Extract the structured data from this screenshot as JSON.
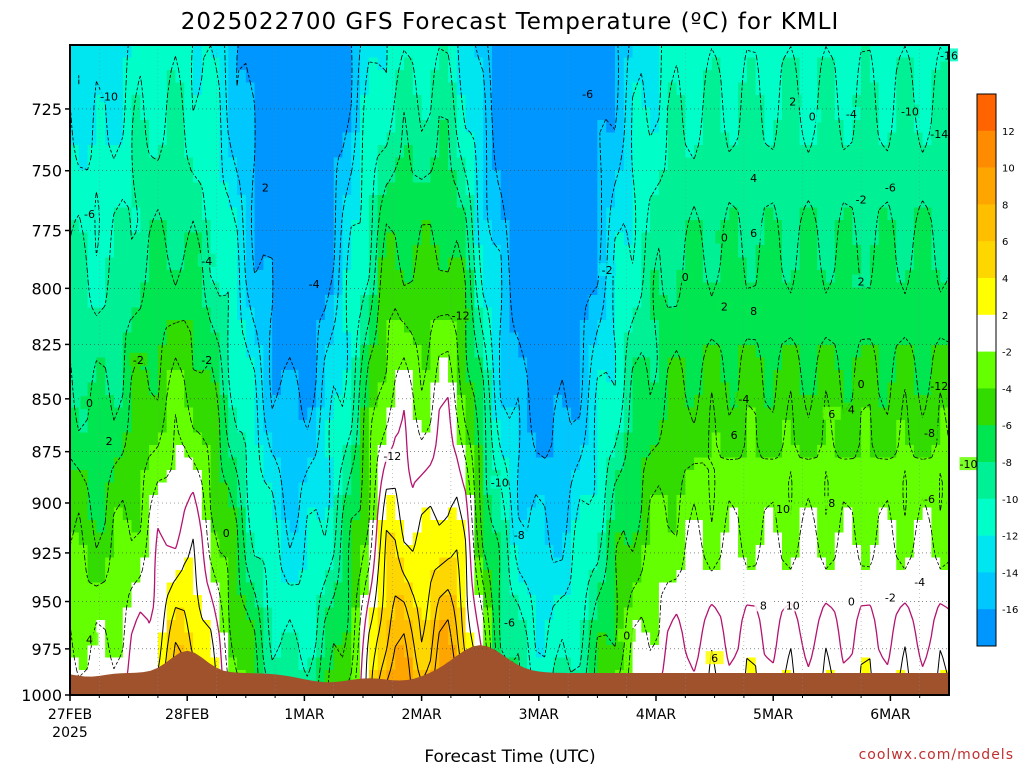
{
  "chart_data": {
    "type": "heatmap",
    "title": "2025022700  GFS Forecast Temperature (ºC) for KMLI",
    "xlabel": "Forecast Time (UTC)",
    "ylabel": "",
    "x_ticks": [
      "27FEB",
      "28FEB",
      "1MAR",
      "2MAR",
      "3MAR",
      "4MAR",
      "5MAR",
      "6MAR"
    ],
    "x_tick_year": "2025",
    "x_range_hours": [
      0,
      180
    ],
    "y_ticks": [
      725,
      750,
      775,
      800,
      825,
      850,
      875,
      900,
      925,
      950,
      975,
      1000
    ],
    "y_range_hpa": [
      1000,
      700
    ],
    "y_scale": "reversed-pressure",
    "grid": true,
    "colorbar": {
      "placement": "right",
      "labels": [
        12,
        10,
        8,
        6,
        4,
        2,
        -2,
        -4,
        -6,
        -8,
        -10,
        -12,
        -14,
        -16
      ],
      "bands": [
        {
          "from": 12,
          "to": 14,
          "color": "#ff6400"
        },
        {
          "from": 10,
          "to": 12,
          "color": "#ff8c00"
        },
        {
          "from": 8,
          "to": 10,
          "color": "#ffa500"
        },
        {
          "from": 6,
          "to": 8,
          "color": "#ffbf00"
        },
        {
          "from": 4,
          "to": 6,
          "color": "#ffd700"
        },
        {
          "from": 2,
          "to": 4,
          "color": "#ffff00"
        },
        {
          "from": -2,
          "to": 2,
          "color": "#ffffff"
        },
        {
          "from": -4,
          "to": -2,
          "color": "#64ff00"
        },
        {
          "from": -6,
          "to": -4,
          "color": "#32dc00"
        },
        {
          "from": -8,
          "to": -6,
          "color": "#00e650"
        },
        {
          "from": -10,
          "to": -8,
          "color": "#00f096"
        },
        {
          "from": -12,
          "to": -10,
          "color": "#00ffc8"
        },
        {
          "from": -14,
          "to": -12,
          "color": "#00e6f0"
        },
        {
          "from": -16,
          "to": -14,
          "color": "#00c8ff"
        },
        {
          "from": -18,
          "to": -16,
          "color": "#0096ff"
        }
      ]
    },
    "terrain_color": "#a0522d",
    "contour_labels": [
      {
        "t": 4,
        "p": 720,
        "v": "-10"
      },
      {
        "t": 2,
        "p": 768,
        "v": "-6"
      },
      {
        "t": 14,
        "p": 788,
        "v": "-4"
      },
      {
        "t": 7,
        "p": 832,
        "v": "-2"
      },
      {
        "t": 14,
        "p": 832,
        "v": "-2"
      },
      {
        "t": 2,
        "p": 852,
        "v": "0"
      },
      {
        "t": 4,
        "p": 870,
        "v": "2"
      },
      {
        "t": 2,
        "p": 970,
        "v": "4"
      },
      {
        "t": 16,
        "p": 915,
        "v": "0"
      },
      {
        "t": 20,
        "p": 757,
        "v": "2"
      },
      {
        "t": 25,
        "p": 798,
        "v": "-4"
      },
      {
        "t": 33,
        "p": 877,
        "v": "-12"
      },
      {
        "t": 40,
        "p": 812,
        "v": "-12"
      },
      {
        "t": 44,
        "p": 890,
        "v": "-10"
      },
      {
        "t": 46,
        "p": 916,
        "v": "-8"
      },
      {
        "t": 45,
        "p": 961,
        "v": "-6"
      },
      {
        "t": 53,
        "p": 719,
        "v": "-6"
      },
      {
        "t": 55,
        "p": 792,
        "v": "-2"
      },
      {
        "t": 57,
        "p": 968,
        "v": "0"
      },
      {
        "t": 67,
        "p": 778,
        "v": "0"
      },
      {
        "t": 63,
        "p": 795,
        "v": "0"
      },
      {
        "t": 74,
        "p": 722,
        "v": "2"
      },
      {
        "t": 70,
        "p": 776,
        "v": "6"
      },
      {
        "t": 70,
        "p": 753,
        "v": "4"
      },
      {
        "t": 70,
        "p": 810,
        "v": "8"
      },
      {
        "t": 69,
        "p": 850,
        "v": "-4"
      },
      {
        "t": 68,
        "p": 867,
        "v": "6"
      },
      {
        "t": 67,
        "p": 808,
        "v": "2"
      },
      {
        "t": 76,
        "p": 728,
        "v": "0"
      },
      {
        "t": 80,
        "p": 727,
        "v": "-4"
      },
      {
        "t": 81,
        "p": 797,
        "v": "2"
      },
      {
        "t": 81,
        "p": 843,
        "v": "0"
      },
      {
        "t": 80,
        "p": 855,
        "v": "4"
      },
      {
        "t": 78,
        "p": 857,
        "v": "6"
      },
      {
        "t": 78,
        "p": 900,
        "v": "8"
      },
      {
        "t": 73,
        "p": 903,
        "v": "10"
      },
      {
        "t": 74,
        "p": 952,
        "v": "10"
      },
      {
        "t": 71,
        "p": 952,
        "v": "8"
      },
      {
        "t": 66,
        "p": 980,
        "v": "6"
      },
      {
        "t": 80,
        "p": 950,
        "v": "0"
      },
      {
        "t": 84,
        "p": 948,
        "v": "-2"
      },
      {
        "t": 87,
        "p": 940,
        "v": "-4"
      },
      {
        "t": 88,
        "p": 898,
        "v": "-6"
      },
      {
        "t": 88,
        "p": 866,
        "v": "-8"
      },
      {
        "t": 92,
        "p": 881,
        "v": "-10"
      },
      {
        "t": 89,
        "p": 844,
        "v": "-12"
      },
      {
        "t": 89,
        "p": 735,
        "v": "-14"
      },
      {
        "t": 84,
        "p": 757,
        "v": "-6"
      },
      {
        "t": 81,
        "p": 762,
        "v": "-2"
      },
      {
        "t": 86,
        "p": 726,
        "v": "-10"
      },
      {
        "t": 90,
        "p": 704,
        "v": "-16"
      }
    ]
  },
  "source": "coolwx.com/models"
}
